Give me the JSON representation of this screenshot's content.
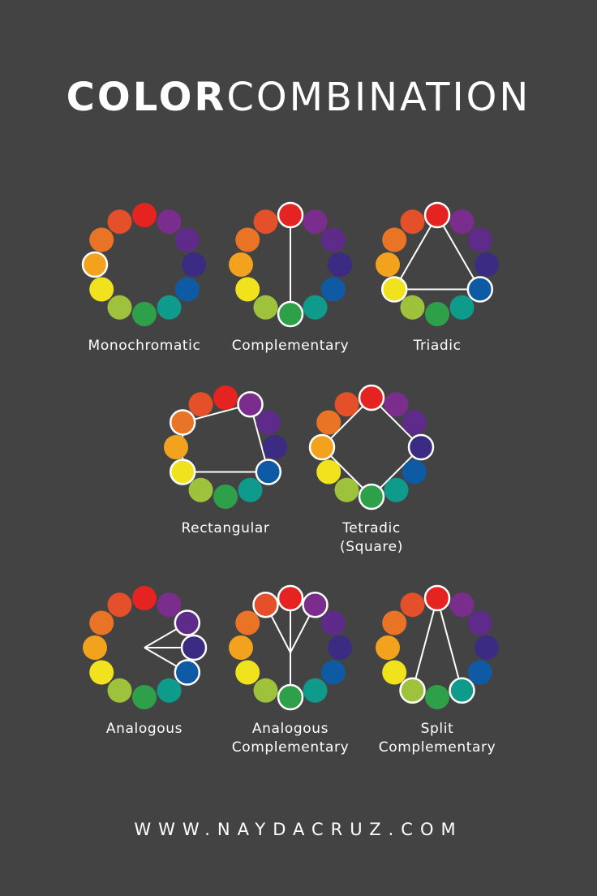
{
  "title": {
    "bold": "COLOR",
    "light": "COMBINATION"
  },
  "wheel_colors": [
    "#e52421",
    "#7b2d8d",
    "#5f2b8b",
    "#3b2b83",
    "#0f5aa4",
    "#0e9b8c",
    "#2ea04a",
    "#9ec23b",
    "#f0e21d",
    "#f2a21d",
    "#ea7426",
    "#e3502a"
  ],
  "wheel_color_names": [
    "red",
    "violet",
    "purple-violet",
    "indigo",
    "blue",
    "teal",
    "green",
    "yellow-green",
    "yellow",
    "orange-yellow",
    "orange",
    "red-orange"
  ],
  "schemes": [
    {
      "label": [
        "Monochromatic"
      ],
      "highlight": [
        9
      ],
      "shape": "none"
    },
    {
      "label": [
        "Complementary"
      ],
      "highlight": [
        0,
        6
      ],
      "shape": "line"
    },
    {
      "label": [
        "Triadic"
      ],
      "highlight": [
        0,
        4,
        8
      ],
      "shape": "polygon"
    },
    {
      "label": [
        "Rectangular"
      ],
      "highlight": [
        1,
        4,
        8,
        10
      ],
      "shape": "polygon"
    },
    {
      "label": [
        "Tetradic",
        "(Square)"
      ],
      "highlight": [
        0,
        3,
        6,
        9
      ],
      "shape": "polygon"
    },
    {
      "label": [
        "Analogous"
      ],
      "highlight": [
        2,
        3,
        4
      ],
      "shape": "fan-center"
    },
    {
      "label": [
        "Analogous",
        "Complementary"
      ],
      "highlight": [
        11,
        0,
        1,
        6
      ],
      "shape": "fork"
    },
    {
      "label": [
        "Split Complementary"
      ],
      "highlight": [
        0,
        5,
        7
      ],
      "shape": "fan-top"
    }
  ],
  "footer": "WWW.NAYDACRUZ.COM"
}
